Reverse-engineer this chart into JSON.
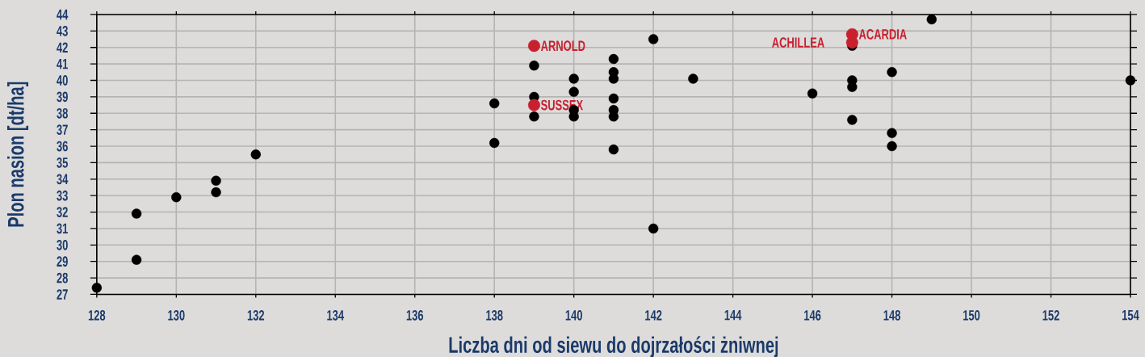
{
  "chart_data": {
    "type": "scatter",
    "xlabel": "Liczba dni od siewu do dojrzałości żniwnej",
    "ylabel": "Plon nasion [dt/ha]",
    "xlim": [
      128,
      154
    ],
    "ylim": [
      27,
      44
    ],
    "xticks": [
      128,
      130,
      132,
      134,
      136,
      138,
      140,
      142,
      144,
      146,
      148,
      150,
      152,
      154
    ],
    "yticks": [
      27,
      28,
      29,
      30,
      31,
      32,
      33,
      34,
      35,
      36,
      37,
      38,
      39,
      40,
      41,
      42,
      43,
      44
    ],
    "grid": true,
    "marker": "circle",
    "series": [
      {
        "color": "#000000",
        "x": [
          128,
          129,
          129,
          130,
          131,
          131,
          132,
          138,
          138,
          139,
          139,
          139,
          140,
          140,
          140,
          140,
          141,
          141,
          141,
          141,
          141,
          141,
          141,
          142,
          142,
          143,
          146,
          147,
          147,
          147,
          147,
          148,
          148,
          148,
          149,
          154
        ],
        "values": [
          27.4,
          31.9,
          29.1,
          32.9,
          33.9,
          33.2,
          35.5,
          38.6,
          36.2,
          40.9,
          39.0,
          37.8,
          40.1,
          39.3,
          38.2,
          37.8,
          41.3,
          40.5,
          40.1,
          38.9,
          38.2,
          37.8,
          35.8,
          42.5,
          31.0,
          40.1,
          39.2,
          42.1,
          40.0,
          39.6,
          37.6,
          40.5,
          36.8,
          36.0,
          43.7,
          40.0
        ]
      },
      {
        "name": "ARNOLD",
        "color": "#c8202f",
        "x": [
          139
        ],
        "values": [
          42.1
        ]
      },
      {
        "name": "SUSSEX",
        "color": "#c8202f",
        "x": [
          139
        ],
        "values": [
          38.5
        ]
      },
      {
        "name": "ACARDIA",
        "color": "#c8202f",
        "x": [
          147
        ],
        "values": [
          42.8
        ]
      },
      {
        "name": "ACHILLEA",
        "color": "#c8202f",
        "x": [
          147
        ],
        "values": [
          42.3
        ]
      }
    ]
  }
}
